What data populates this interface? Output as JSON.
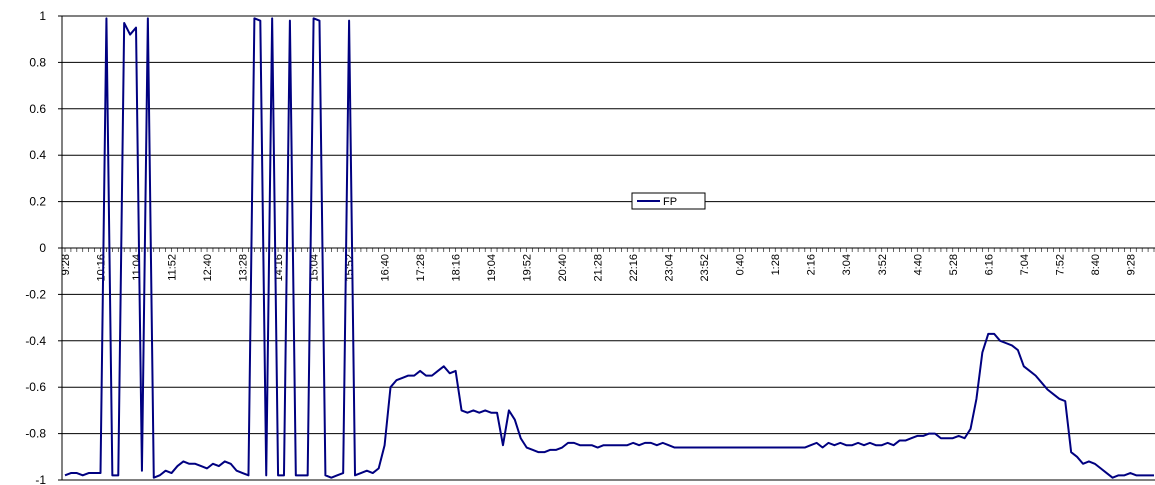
{
  "chart_data": {
    "type": "line",
    "categories": [
      "9:28",
      null,
      null,
      null,
      null,
      null,
      "10:16",
      null,
      null,
      null,
      null,
      null,
      "11:04",
      null,
      null,
      null,
      null,
      null,
      "11:52",
      null,
      null,
      null,
      null,
      null,
      "12:40",
      null,
      null,
      null,
      null,
      null,
      "13:28",
      null,
      null,
      null,
      null,
      null,
      "14:16",
      null,
      null,
      null,
      null,
      null,
      "15:04",
      null,
      null,
      null,
      null,
      null,
      "15:52",
      null,
      null,
      null,
      null,
      null,
      "16:40",
      null,
      null,
      null,
      null,
      null,
      "17:28",
      null,
      null,
      null,
      null,
      null,
      "18:16",
      null,
      null,
      null,
      null,
      null,
      "19:04",
      null,
      null,
      null,
      null,
      null,
      "19:52",
      null,
      null,
      null,
      null,
      null,
      "20:40",
      null,
      null,
      null,
      null,
      null,
      "21:28",
      null,
      null,
      null,
      null,
      null,
      "22:16",
      null,
      null,
      null,
      null,
      null,
      "23:04",
      null,
      null,
      null,
      null,
      null,
      "23:52",
      null,
      null,
      null,
      null,
      null,
      "0:40",
      null,
      null,
      null,
      null,
      null,
      "1:28",
      null,
      null,
      null,
      null,
      null,
      "2:16",
      null,
      null,
      null,
      null,
      null,
      "3:04",
      null,
      null,
      null,
      null,
      null,
      "3:52",
      null,
      null,
      null,
      null,
      null,
      "4:40",
      null,
      null,
      null,
      null,
      null,
      "5:28",
      null,
      null,
      null,
      null,
      null,
      "6:16",
      null,
      null,
      null,
      null,
      null,
      "7:04",
      null,
      null,
      null,
      null,
      null,
      "7:52",
      null,
      null,
      null,
      null,
      null,
      "8:40",
      null,
      null,
      null,
      null,
      null,
      "9:28",
      null,
      null,
      null,
      null
    ],
    "series": [
      {
        "name": "FP",
        "color": "#000080",
        "values": [
          -0.98,
          -0.97,
          -0.97,
          -0.98,
          -0.97,
          -0.97,
          -0.97,
          0.99,
          -0.98,
          -0.98,
          0.97,
          0.92,
          0.95,
          -0.96,
          0.99,
          -0.99,
          -0.98,
          -0.96,
          -0.97,
          -0.94,
          -0.92,
          -0.93,
          -0.93,
          -0.94,
          -0.95,
          -0.93,
          -0.94,
          -0.92,
          -0.93,
          -0.96,
          -0.97,
          -0.98,
          0.99,
          0.98,
          -0.98,
          0.99,
          -0.98,
          -0.98,
          0.98,
          -0.98,
          -0.98,
          -0.98,
          0.99,
          0.98,
          -0.98,
          -0.99,
          -0.98,
          -0.97,
          0.98,
          -0.98,
          -0.97,
          -0.96,
          -0.97,
          -0.95,
          -0.85,
          -0.6,
          -0.57,
          -0.56,
          -0.55,
          -0.55,
          -0.53,
          -0.55,
          -0.55,
          -0.53,
          -0.51,
          -0.54,
          -0.53,
          -0.7,
          -0.71,
          -0.7,
          -0.71,
          -0.7,
          -0.71,
          -0.71,
          -0.85,
          -0.7,
          -0.74,
          -0.82,
          -0.86,
          -0.87,
          -0.88,
          -0.88,
          -0.87,
          -0.87,
          -0.86,
          -0.84,
          -0.84,
          -0.85,
          -0.85,
          -0.85,
          -0.86,
          -0.85,
          -0.85,
          -0.85,
          -0.85,
          -0.85,
          -0.84,
          -0.85,
          -0.84,
          -0.84,
          -0.85,
          -0.84,
          -0.85,
          -0.86,
          -0.86,
          -0.86,
          -0.86,
          -0.86,
          -0.86,
          -0.86,
          -0.86,
          -0.86,
          -0.86,
          -0.86,
          -0.86,
          -0.86,
          -0.86,
          -0.86,
          -0.86,
          -0.86,
          -0.86,
          -0.86,
          -0.86,
          -0.86,
          -0.86,
          -0.86,
          -0.85,
          -0.84,
          -0.86,
          -0.84,
          -0.85,
          -0.84,
          -0.85,
          -0.85,
          -0.84,
          -0.85,
          -0.84,
          -0.85,
          -0.85,
          -0.84,
          -0.85,
          -0.83,
          -0.83,
          -0.82,
          -0.81,
          -0.81,
          -0.8,
          -0.8,
          -0.82,
          -0.82,
          -0.82,
          -0.81,
          -0.82,
          -0.78,
          -0.65,
          -0.45,
          -0.37,
          -0.37,
          -0.4,
          -0.41,
          -0.42,
          -0.44,
          -0.51,
          -0.53,
          -0.55,
          -0.58,
          -0.61,
          -0.63,
          -0.65,
          -0.66,
          -0.88,
          -0.9,
          -0.93,
          -0.92,
          -0.93,
          -0.95,
          -0.97,
          -0.99,
          -0.98,
          -0.98,
          -0.97,
          -0.98,
          -0.98,
          -0.98,
          -0.98
        ]
      }
    ],
    "ylim": [
      -1,
      1
    ],
    "yticks": [
      -1,
      -0.8,
      -0.6,
      -0.4,
      -0.2,
      0,
      0.2,
      0.4,
      0.6,
      0.8,
      1
    ],
    "grid": true,
    "legend": "center"
  }
}
